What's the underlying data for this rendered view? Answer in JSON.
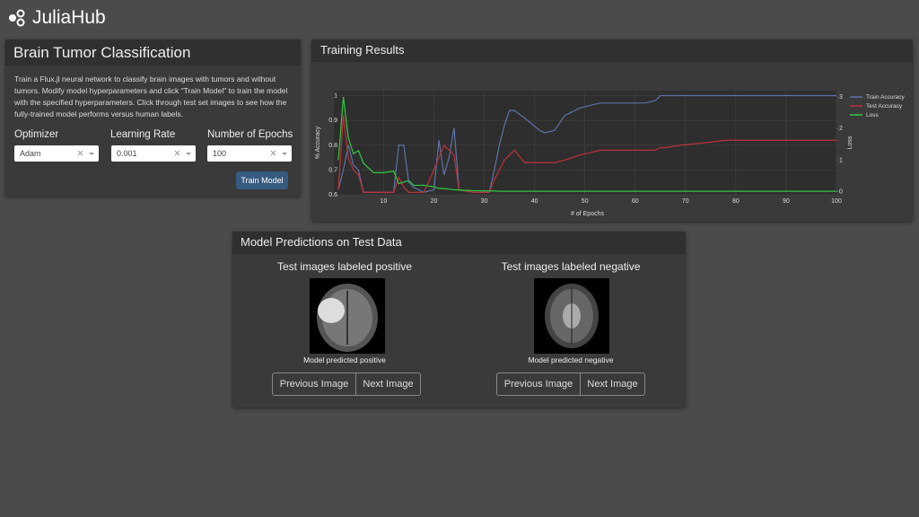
{
  "header": {
    "logo": "JuliaHub"
  },
  "controls": {
    "title": "Brain Tumor Classification",
    "description": "Train a Flux.jl neural network to classify brain images with tumors and without tumors. Modify model hyperparameters and click \"Train Model\" to train the model with the specified hyperparameters. Click through test set images to see how the fully-trained model performs versus human labels.",
    "fields": [
      {
        "label": "Optimizer",
        "value": "Adam"
      },
      {
        "label": "Learning Rate",
        "value": "0.001"
      },
      {
        "label": "Number of Epochs",
        "value": "100"
      }
    ],
    "button": "Train Model"
  },
  "results": {
    "title": "Training Results"
  },
  "chart_data": {
    "type": "line",
    "xlabel": "# of Epochs",
    "ylabel": "% Accuracy",
    "y2label": "Loss",
    "x": [
      1,
      2,
      3,
      4,
      5,
      6,
      8,
      10,
      12,
      13,
      14,
      15,
      16,
      18,
      20,
      21,
      22,
      23,
      24,
      25,
      28,
      31,
      32,
      33,
      34,
      35,
      36,
      38,
      41,
      42,
      44,
      46,
      49,
      51,
      53,
      62,
      64,
      65,
      66,
      69,
      74,
      78,
      80,
      90,
      100
    ],
    "series": [
      {
        "name": "Train Accuracy",
        "color": "#5b74a8",
        "values": [
          0.62,
          0.7,
          0.8,
          0.72,
          0.7,
          0.61,
          0.61,
          0.61,
          0.61,
          0.8,
          0.8,
          0.65,
          0.63,
          0.61,
          0.62,
          0.82,
          0.68,
          0.75,
          0.87,
          0.62,
          0.61,
          0.61,
          0.7,
          0.8,
          0.88,
          0.94,
          0.94,
          0.91,
          0.86,
          0.85,
          0.86,
          0.92,
          0.95,
          0.96,
          0.97,
          0.97,
          0.98,
          1,
          1,
          1,
          1,
          1,
          1,
          1,
          1
        ]
      },
      {
        "name": "Test Accuracy",
        "color": "#c0303a",
        "values": [
          0.62,
          0.92,
          0.75,
          0.7,
          0.68,
          0.61,
          0.61,
          0.61,
          0.61,
          0.67,
          0.63,
          0.61,
          0.61,
          0.61,
          0.7,
          0.75,
          0.8,
          0.78,
          0.76,
          0.62,
          0.61,
          0.61,
          0.66,
          0.7,
          0.74,
          0.76,
          0.78,
          0.73,
          0.73,
          0.73,
          0.73,
          0.74,
          0.76,
          0.77,
          0.78,
          0.78,
          0.78,
          0.79,
          0.79,
          0.8,
          0.81,
          0.82,
          0.82,
          0.82,
          0.82
        ]
      },
      {
        "name": "Loss",
        "color": "#2ecc40",
        "axis": "y2",
        "values": [
          1,
          3,
          1.7,
          1.2,
          1.3,
          0.9,
          0.6,
          0.6,
          0.65,
          0.25,
          0.3,
          0.35,
          0.2,
          0.2,
          0.15,
          0.1,
          0.1,
          0.08,
          0.06,
          0.05,
          0.03,
          0.02,
          0.02,
          0.01,
          0.01,
          0.01,
          0.01,
          0.01,
          0.01,
          0.01,
          0.01,
          0.01,
          0.01,
          0.01,
          0.01,
          0.01,
          0.01,
          0.01,
          0.01,
          0.01,
          0.01,
          0.01,
          0.01,
          0.01,
          0.01
        ]
      }
    ],
    "xlim": [
      1,
      100
    ],
    "xticks": [
      10,
      20,
      30,
      40,
      50,
      60,
      70,
      80,
      90,
      100
    ],
    "ylim": [
      0.6,
      1.02
    ],
    "yticks": [
      0.6,
      0.7,
      0.8,
      0.9,
      1
    ],
    "y2lim": [
      -0.1,
      3.2
    ],
    "y2ticks": [
      0,
      1,
      2,
      3
    ],
    "grid": true,
    "legend": "top-right"
  },
  "predictions": {
    "title": "Model Predictions on Test Data",
    "panels": [
      {
        "heading": "Test images labeled positive",
        "caption": "Model predicted positive",
        "prev": "Previous Image",
        "next": "Next Image"
      },
      {
        "heading": "Test images labeled negative",
        "caption": "Model predicted negative",
        "prev": "Previous Image",
        "next": "Next Image"
      }
    ]
  }
}
